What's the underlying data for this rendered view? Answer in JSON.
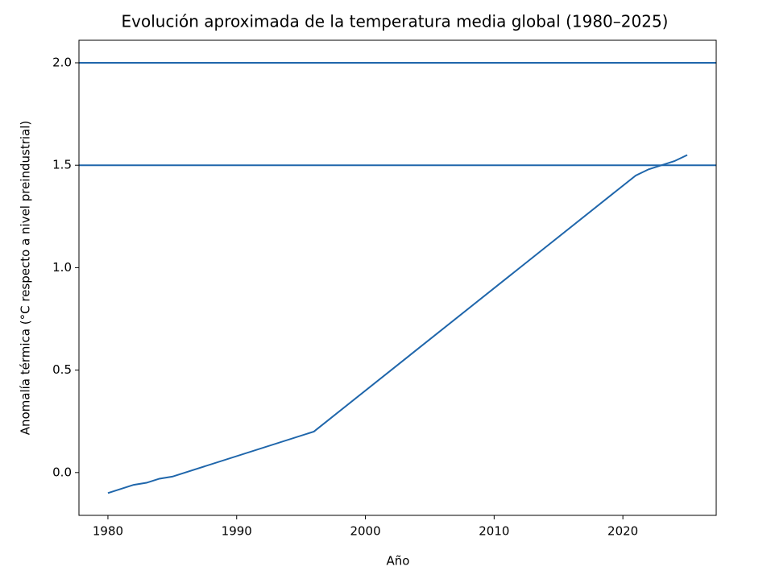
{
  "chart_data": {
    "type": "line",
    "title": "Evolución aproximada de la temperatura media global (1980–2025)",
    "x_label": "Año",
    "y_label": "Anomalía térmica (°C respecto a nivel preindustrial)",
    "x": [
      1980,
      1982,
      1983,
      1984,
      1985,
      1996,
      2021,
      2022,
      2023,
      2024,
      2025
    ],
    "series": [
      {
        "color": "#1f66ab",
        "values": [
          -0.1,
          -0.06,
          -0.05,
          -0.03,
          -0.02,
          0.2,
          1.45,
          1.48,
          1.5,
          1.52,
          1.55
        ]
      }
    ],
    "hlines": [
      1.5,
      2.0
    ],
    "xlim": [
      1977.75,
      2027.25
    ],
    "xticks": [
      1980,
      1990,
      2000,
      2010,
      2020
    ],
    "ylim": [
      -0.209,
      2.11
    ],
    "yticks": [
      {
        "value": 0,
        "label": "0.0"
      },
      {
        "value": 0.5,
        "label": "0.5"
      },
      {
        "value": 1,
        "label": "1.0"
      },
      {
        "value": 1.5,
        "label": "1.5"
      },
      {
        "value": 2,
        "label": "2.0"
      }
    ]
  }
}
